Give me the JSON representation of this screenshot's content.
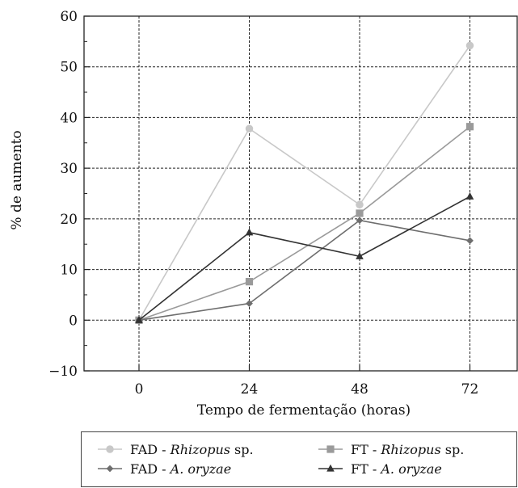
{
  "chart_data": {
    "type": "line",
    "xlabel": "Tempo de fermentação (horas)",
    "ylabel": "% de aumento",
    "categories": [
      "0",
      "24",
      "48",
      "72"
    ],
    "x": [
      0,
      24,
      48,
      72
    ],
    "ylim": [
      -10,
      60
    ],
    "yticks": [
      -10,
      0,
      10,
      20,
      30,
      40,
      50,
      60
    ],
    "yticklabels": [
      "−10",
      "0",
      "10",
      "20",
      "30",
      "40",
      "50",
      "60"
    ],
    "grid": true,
    "legend_position": "bottom",
    "series": [
      {
        "name": "FAD - Rhizopus sp.",
        "name_parts": {
          "prefix": "FAD - ",
          "italic": "Rhizopus",
          "suffix": " sp."
        },
        "values": [
          0,
          37.8,
          22.8,
          54.2
        ],
        "color": "#c8c8c8",
        "marker": "circle"
      },
      {
        "name": "FT - Rhizopus sp.",
        "name_parts": {
          "prefix": "FT - ",
          "italic": "Rhizopus",
          "suffix": " sp."
        },
        "values": [
          0,
          7.6,
          21.1,
          38.2
        ],
        "color": "#9a9a9a",
        "marker": "square"
      },
      {
        "name": "FAD - A. oryzae",
        "name_parts": {
          "prefix": "FAD - ",
          "italic": "A. oryzae",
          "suffix": ""
        },
        "values": [
          0,
          3.3,
          19.7,
          15.7
        ],
        "color": "#6e6e6e",
        "marker": "diamond"
      },
      {
        "name": "FT - A. oryzae",
        "name_parts": {
          "prefix": "FT - ",
          "italic": "A. oryzae",
          "suffix": ""
        },
        "values": [
          0,
          17.3,
          12.6,
          24.4
        ],
        "color": "#333333",
        "marker": "triangle"
      }
    ]
  }
}
